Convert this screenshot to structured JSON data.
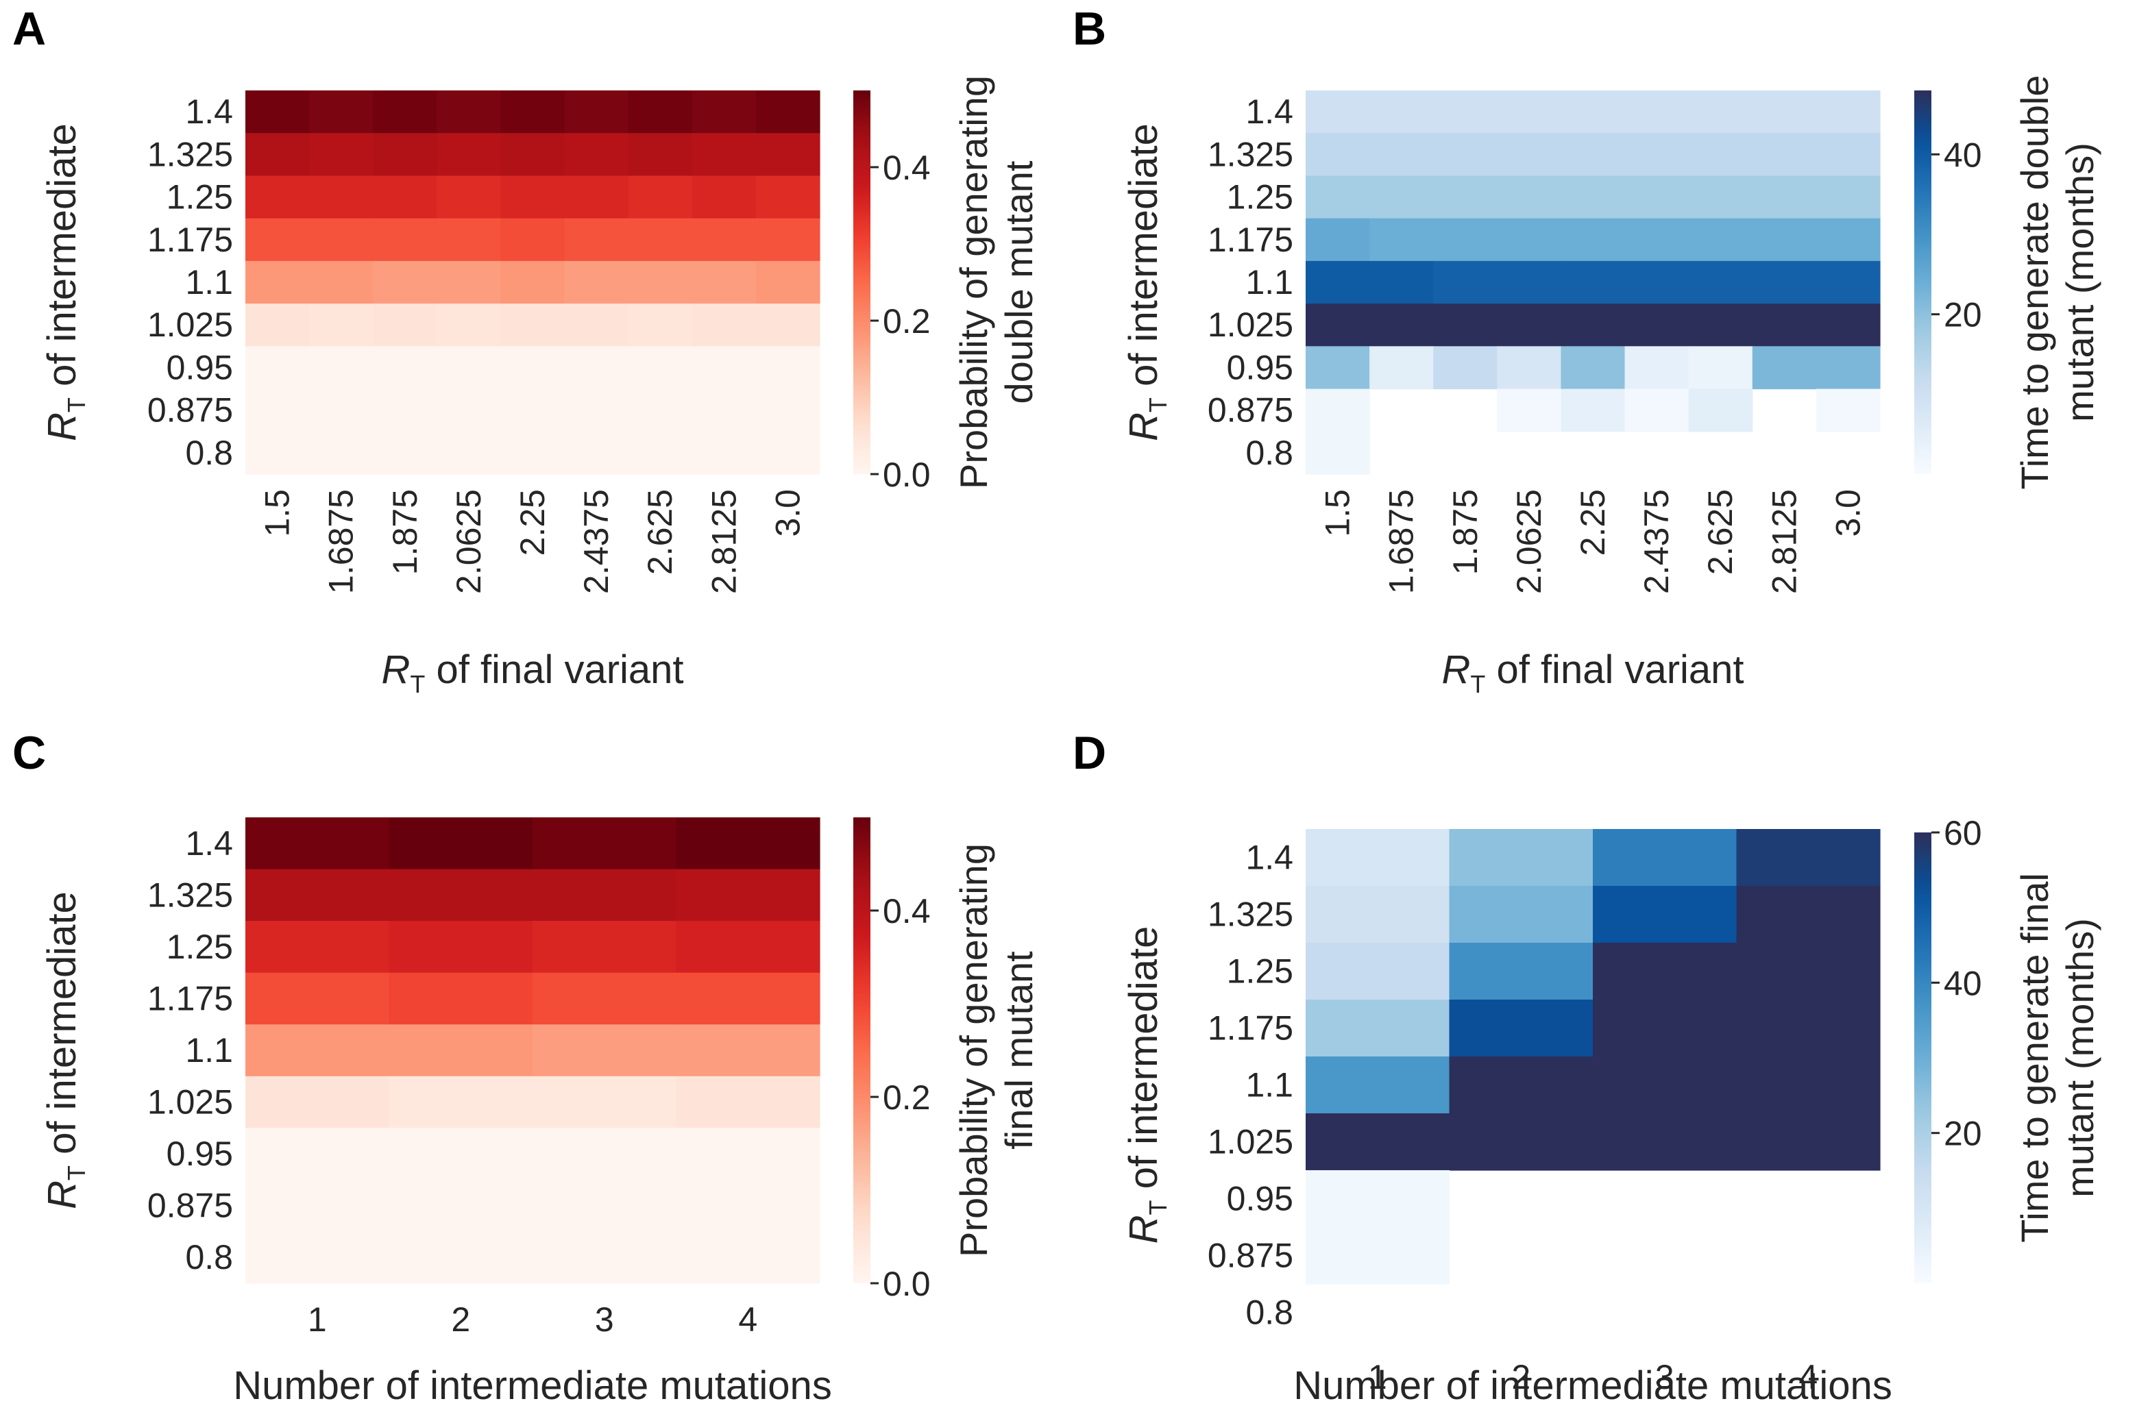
{
  "chart_data": [
    {
      "id": "A",
      "panel_label": "A",
      "type": "heatmap",
      "colormap": "Reds",
      "x_categories": [
        "1.5",
        "1.6875",
        "1.875",
        "2.0625",
        "2.25",
        "2.4375",
        "2.625",
        "2.8125",
        "3.0"
      ],
      "y_categories": [
        "1.4",
        "1.325",
        "1.25",
        "1.175",
        "1.1",
        "1.025",
        "0.95",
        "0.875",
        "0.8"
      ],
      "xlabel": {
        "symbol": "R",
        "subscript": "T",
        "text": " of final variant"
      },
      "ylabel": {
        "symbol": "R",
        "subscript": "T",
        "text": " of intermediate"
      },
      "colorbar": {
        "label_lines": [
          "Probability of generating",
          "double mutant"
        ],
        "ticks": [
          "0.0",
          "0.2",
          "0.4"
        ],
        "tick_values": [
          0.0,
          0.2,
          0.4
        ],
        "vmin": 0.0,
        "vmax": 0.5
      },
      "values": [
        [
          0.49,
          0.48,
          0.49,
          0.48,
          0.49,
          0.48,
          0.49,
          0.48,
          0.49
        ],
        [
          0.42,
          0.41,
          0.42,
          0.41,
          0.42,
          0.41,
          0.42,
          0.41,
          0.41
        ],
        [
          0.35,
          0.35,
          0.35,
          0.34,
          0.35,
          0.35,
          0.34,
          0.35,
          0.34
        ],
        [
          0.28,
          0.28,
          0.28,
          0.28,
          0.29,
          0.28,
          0.28,
          0.28,
          0.28
        ],
        [
          0.18,
          0.18,
          0.17,
          0.17,
          0.18,
          0.17,
          0.17,
          0.17,
          0.18
        ],
        [
          0.05,
          0.045,
          0.05,
          0.045,
          0.05,
          0.05,
          0.045,
          0.05,
          0.05
        ],
        [
          0.0,
          0.0,
          0.0,
          0.0,
          0.0,
          0.0,
          0.0,
          0.0,
          0.0
        ],
        [
          0.0,
          0.0,
          0.0,
          0.0,
          0.0,
          0.0,
          0.0,
          0.0,
          0.0
        ],
        [
          0.0,
          0.0,
          0.0,
          0.0,
          0.0,
          0.0,
          0.0,
          0.0,
          0.0
        ]
      ]
    },
    {
      "id": "B",
      "panel_label": "B",
      "type": "heatmap",
      "colormap": "Blues",
      "x_categories": [
        "1.5",
        "1.6875",
        "1.875",
        "2.0625",
        "2.25",
        "2.4375",
        "2.625",
        "2.8125",
        "3.0"
      ],
      "y_categories": [
        "1.4",
        "1.325",
        "1.25",
        "1.175",
        "1.1",
        "1.025",
        "0.95",
        "0.875",
        "0.8"
      ],
      "xlabel": {
        "symbol": "R",
        "subscript": "T",
        "text": " of final variant"
      },
      "ylabel": {
        "symbol": "R",
        "subscript": "T",
        "text": " of intermediate"
      },
      "colorbar": {
        "label_lines": [
          "Time to generate double",
          "mutant (months)"
        ],
        "ticks": [
          "20",
          "40"
        ],
        "tick_values": [
          20,
          40
        ],
        "vmin": 0,
        "vmax": 48
      },
      "values": [
        [
          10,
          10,
          10,
          10,
          10,
          10,
          10,
          10,
          10
        ],
        [
          13,
          13,
          13,
          13,
          13,
          13,
          13,
          13,
          13
        ],
        [
          17,
          17,
          17,
          17,
          17,
          17,
          17,
          17,
          17
        ],
        [
          25,
          24,
          24,
          24,
          24,
          24,
          24,
          24,
          24
        ],
        [
          40,
          40,
          39,
          39,
          39,
          39,
          39,
          39,
          39
        ],
        [
          48,
          48,
          48,
          48,
          48,
          48,
          48,
          48,
          48
        ],
        [
          20,
          5,
          12,
          8,
          20,
          4,
          3,
          22,
          22
        ],
        [
          2,
          null,
          null,
          1,
          4,
          1,
          5,
          null,
          1
        ],
        [
          2,
          null,
          null,
          null,
          null,
          null,
          null,
          null,
          null
        ]
      ]
    },
    {
      "id": "C",
      "panel_label": "C",
      "type": "heatmap",
      "colormap": "Reds",
      "x_categories": [
        "1",
        "2",
        "3",
        "4"
      ],
      "y_categories": [
        "1.4",
        "1.325",
        "1.25",
        "1.175",
        "1.1",
        "1.025",
        "0.95",
        "0.875",
        "0.8"
      ],
      "xlabel": {
        "text": "Number of intermediate mutations"
      },
      "ylabel": {
        "symbol": "R",
        "subscript": "T",
        "text": " of intermediate"
      },
      "colorbar": {
        "label_lines": [
          "Probability of generating",
          "final mutant"
        ],
        "ticks": [
          "0.0",
          "0.2",
          "0.4"
        ],
        "tick_values": [
          0.0,
          0.2,
          0.4
        ],
        "vmin": 0.0,
        "vmax": 0.5
      },
      "values": [
        [
          0.49,
          0.5,
          0.49,
          0.5
        ],
        [
          0.42,
          0.42,
          0.42,
          0.41
        ],
        [
          0.35,
          0.36,
          0.35,
          0.36
        ],
        [
          0.29,
          0.3,
          0.29,
          0.29
        ],
        [
          0.18,
          0.18,
          0.17,
          0.17
        ],
        [
          0.05,
          0.04,
          0.04,
          0.05
        ],
        [
          0.0,
          0.0,
          0.0,
          0.0
        ],
        [
          0.0,
          0.0,
          0.0,
          0.0
        ],
        [
          0.0,
          0.0,
          0.0,
          0.0
        ]
      ]
    },
    {
      "id": "D",
      "panel_label": "D",
      "type": "heatmap",
      "colormap": "Blues",
      "x_categories": [
        "1",
        "2",
        "3",
        "4"
      ],
      "y_categories": [
        "1.4",
        "1.325",
        "1.25",
        "1.175",
        "1.1",
        "1.025",
        "0.95",
        "0.875",
        "0.8"
      ],
      "xlabel": {
        "text": "Number of intermediate mutations"
      },
      "ylabel": {
        "symbol": "R",
        "subscript": "T",
        "text": " of intermediate"
      },
      "colorbar": {
        "label_lines": [
          "Time to generate final",
          "mutant (months)"
        ],
        "ticks": [
          "20",
          "40",
          "60"
        ],
        "tick_values": [
          20,
          40,
          60
        ],
        "vmin": 0,
        "vmax": 60
      },
      "values": [
        [
          10,
          25,
          42,
          57
        ],
        [
          12,
          28,
          52,
          60
        ],
        [
          15,
          38,
          60,
          60
        ],
        [
          22,
          53,
          60,
          60
        ],
        [
          36,
          60,
          60,
          60
        ],
        [
          60,
          60,
          60,
          60
        ],
        [
          2,
          null,
          null,
          null
        ],
        [
          2,
          null,
          null,
          null
        ],
        [
          null,
          null,
          null,
          null
        ]
      ]
    }
  ]
}
